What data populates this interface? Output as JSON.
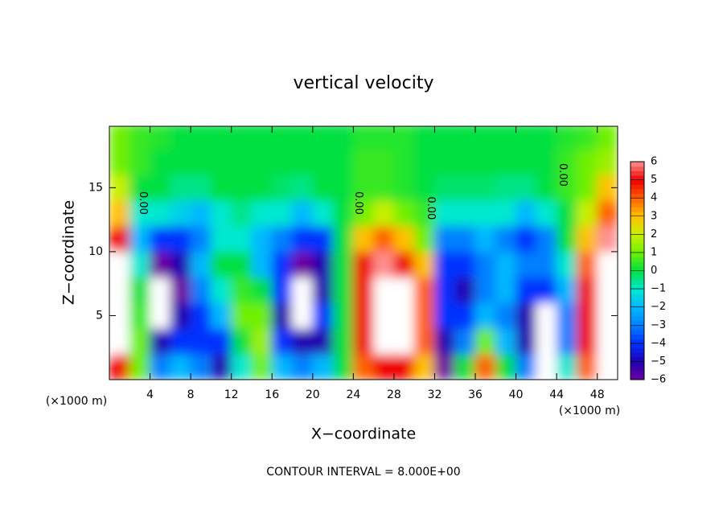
{
  "chart_data": {
    "type": "heatmap",
    "title": "vertical velocity",
    "xlabel": "X−coordinate",
    "ylabel": "Z−coordinate",
    "x_unit_label": "(×1000 m)",
    "footer": "CONTOUR INTERVAL = 8.000E+00",
    "xlim": [
      0,
      50
    ],
    "ylim": [
      0,
      19.8
    ],
    "xticks": [
      4,
      8,
      12,
      16,
      20,
      24,
      28,
      32,
      36,
      40,
      44,
      48
    ],
    "yticks": [
      5,
      10,
      15
    ],
    "x": [
      1,
      3,
      5,
      7,
      9,
      11,
      13,
      15,
      17,
      19,
      21,
      23,
      25,
      27,
      29,
      31,
      33,
      35,
      37,
      39,
      41,
      43,
      45,
      47,
      49
    ],
    "y": [
      1,
      3,
      5,
      7,
      9,
      11,
      13,
      15,
      17,
      19
    ],
    "values": [
      [
        5,
        1,
        -3,
        -2,
        -3,
        -5,
        -1,
        1,
        -2,
        -3,
        -2,
        0,
        4,
        5,
        5,
        3,
        -6,
        0,
        4,
        0,
        -3,
        -7,
        -1,
        4,
        7
      ],
      [
        7,
        1,
        -5,
        -4,
        -4,
        -4,
        0,
        1.5,
        -4,
        -5,
        -5,
        0,
        5,
        7,
        7,
        4,
        -5,
        -3,
        1,
        -2,
        -5,
        -7,
        -3,
        5,
        8
      ],
      [
        8,
        0.5,
        -7,
        -5,
        -4,
        -2,
        1,
        1,
        -5,
        -7,
        -4,
        0,
        5,
        8,
        8,
        4,
        -4,
        -4,
        -2,
        -3,
        -5,
        -7,
        -3,
        5,
        8
      ],
      [
        8,
        0,
        -7,
        -6,
        -3,
        -1,
        0.5,
        0,
        -4,
        -7,
        -5,
        0,
        5,
        8,
        7,
        4,
        -4,
        -5,
        -3,
        -2,
        -4,
        -4,
        -2,
        5,
        8
      ],
      [
        7,
        -1,
        -6,
        -5,
        -2,
        0,
        0,
        -2,
        -4,
        -6,
        -5,
        0,
        5,
        6,
        5,
        3,
        -4,
        -4,
        -3,
        -2,
        -3,
        -3,
        -1,
        4,
        7
      ],
      [
        5,
        -2,
        -4,
        -4,
        -3,
        -1,
        -1,
        -2,
        -3,
        -4,
        -4,
        0,
        3,
        4,
        3,
        1,
        -3,
        -3,
        -2,
        -3,
        -4,
        -3,
        0,
        3,
        6
      ],
      [
        3,
        -1,
        -1,
        -1.5,
        -2,
        -1,
        -0.5,
        -1,
        -1,
        -2,
        -1,
        0,
        1,
        2,
        1,
        0.5,
        -1,
        -1,
        -1,
        -1,
        -2,
        -1,
        0,
        2,
        4
      ],
      [
        2,
        0,
        0,
        -0.5,
        -0.5,
        0,
        0,
        0,
        -0.3,
        -0.5,
        0,
        0,
        0.5,
        0.5,
        0.3,
        0,
        -0.3,
        -0.3,
        -0.3,
        -0.5,
        -0.5,
        0,
        0.5,
        1,
        3
      ],
      [
        1,
        0.5,
        0,
        0,
        0,
        0,
        0,
        0,
        0,
        0,
        0,
        0,
        0.5,
        0.5,
        0.3,
        0,
        0,
        0,
        0,
        0,
        0,
        0,
        0.5,
        1,
        1.5
      ],
      [
        1,
        0.5,
        0.3,
        0,
        0,
        0,
        0,
        0,
        0,
        0,
        0,
        0,
        0.3,
        0.3,
        0.3,
        0,
        0,
        0,
        0,
        0,
        0,
        0,
        0.3,
        0.5,
        1
      ]
    ],
    "colorbar_ticks": [
      {
        "value": -6,
        "label": "−6"
      },
      {
        "value": -5,
        "label": "−5"
      },
      {
        "value": -4,
        "label": "−4"
      },
      {
        "value": -3,
        "label": "−3"
      },
      {
        "value": -2,
        "label": "−2"
      },
      {
        "value": -1,
        "label": "−1"
      },
      0,
      1,
      2,
      3,
      4,
      5,
      6
    ],
    "colors": [
      "#7000a0",
      "#2000b0",
      "#0030ff",
      "#0080ff",
      "#00b8ff",
      "#00e8d0",
      "#00e040",
      "#70f000",
      "#c8f000",
      "#ffc000",
      "#ff6000",
      "#f00000",
      "#ff9090"
    ],
    "out_of_range_color": "#ffffff",
    "contour_labels": [
      {
        "text": "0.00",
        "x": 3.3,
        "y": 13.8
      },
      {
        "text": "0.00",
        "x": 24.5,
        "y": 13.8
      },
      {
        "text": "0.00",
        "x": 31.6,
        "y": 13.4
      },
      {
        "text": "0.00",
        "x": 44.6,
        "y": 16
      }
    ]
  }
}
